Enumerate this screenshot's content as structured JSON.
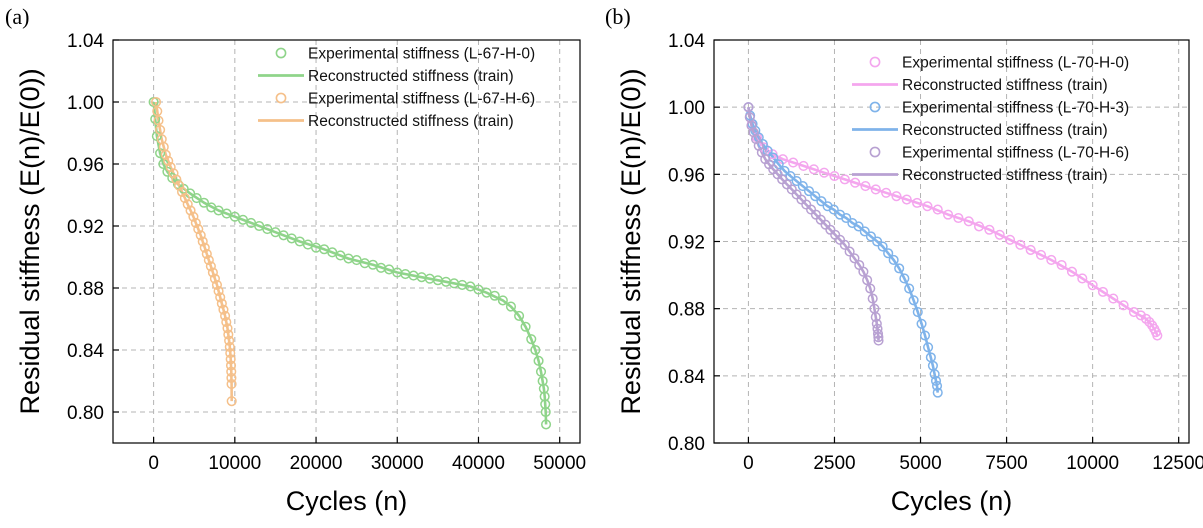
{
  "chart_data": [
    {
      "type": "scatter",
      "panel_label": "(a)",
      "xlabel": "Cycles (n)",
      "ylabel": "Residual stiffness (E(n)/E(0))",
      "xlim": [
        -5000,
        52500
      ],
      "ylim": [
        0.78,
        1.04
      ],
      "xticks": [
        0,
        10000,
        20000,
        30000,
        40000,
        50000
      ],
      "yticks": [
        0.8,
        0.84,
        0.88,
        0.92,
        0.96,
        1.0,
        1.04
      ],
      "ytick_format": 2,
      "grid": true,
      "legend_position": "top-right",
      "series": [
        {
          "name": "Experimental stiffness (L-67-H-0)",
          "kind": "marker",
          "color": "#8fd48a",
          "x": [
            0,
            200,
            400,
            800,
            1200,
            1700,
            2300,
            3000,
            3700,
            4500,
            5300,
            6200,
            7100,
            8000,
            9000,
            10000,
            11000,
            12000,
            13000,
            14000,
            15000,
            16000,
            17000,
            18000,
            19000,
            20000,
            21000,
            22000,
            23000,
            24000,
            25000,
            26000,
            27000,
            28000,
            29000,
            30000,
            31000,
            32000,
            33000,
            34000,
            35000,
            36000,
            37000,
            38000,
            39000,
            40000,
            41000,
            42000,
            43000,
            44000,
            45000,
            45800,
            46500,
            47000,
            47400,
            47700,
            47900,
            48050,
            48150,
            48220,
            48280,
            48320
          ],
          "y": [
            1.0,
            0.989,
            0.978,
            0.967,
            0.96,
            0.955,
            0.951,
            0.947,
            0.944,
            0.941,
            0.938,
            0.935,
            0.932,
            0.93,
            0.928,
            0.926,
            0.924,
            0.922,
            0.92,
            0.918,
            0.916,
            0.914,
            0.912,
            0.91,
            0.908,
            0.906,
            0.905,
            0.903,
            0.901,
            0.899,
            0.898,
            0.896,
            0.895,
            0.893,
            0.892,
            0.89,
            0.889,
            0.888,
            0.887,
            0.886,
            0.885,
            0.884,
            0.883,
            0.882,
            0.881,
            0.879,
            0.877,
            0.875,
            0.872,
            0.868,
            0.862,
            0.855,
            0.847,
            0.84,
            0.833,
            0.826,
            0.82,
            0.815,
            0.81,
            0.805,
            0.8,
            0.792
          ]
        },
        {
          "name": "Reconstructed stiffness (train)",
          "kind": "line",
          "color": "#8fd48a",
          "x": [
            0,
            200,
            400,
            800,
            1200,
            1700,
            2300,
            3000,
            4500,
            6200,
            8000,
            10000,
            12000,
            15000,
            18000,
            21000,
            24000,
            27000,
            30000,
            33000,
            36000,
            39000,
            41000,
            43000,
            44000,
            45000,
            45800,
            46500,
            47000,
            47400,
            47700,
            47900,
            48050,
            48150,
            48220,
            48280,
            48320
          ],
          "y": [
            1.0,
            0.989,
            0.978,
            0.967,
            0.96,
            0.955,
            0.951,
            0.947,
            0.941,
            0.935,
            0.93,
            0.926,
            0.922,
            0.916,
            0.91,
            0.905,
            0.899,
            0.895,
            0.89,
            0.887,
            0.884,
            0.881,
            0.877,
            0.872,
            0.868,
            0.862,
            0.855,
            0.847,
            0.84,
            0.833,
            0.826,
            0.82,
            0.815,
            0.81,
            0.805,
            0.8,
            0.792
          ]
        },
        {
          "name": "Experimental stiffness (L-67-H-6)",
          "kind": "marker",
          "color": "#f5c08a",
          "x": [
            300,
            450,
            600,
            800,
            1000,
            1250,
            1500,
            1800,
            2100,
            2450,
            2800,
            3150,
            3500,
            3850,
            4200,
            4550,
            4900,
            5200,
            5500,
            5800,
            6050,
            6300,
            6550,
            6800,
            7050,
            7300,
            7550,
            7800,
            8000,
            8200,
            8400,
            8600,
            8800,
            8950,
            9100,
            9200,
            9300,
            9380,
            9440,
            9490,
            9530,
            9560,
            9580,
            9600,
            9615
          ],
          "y": [
            1.0,
            0.994,
            0.988,
            0.982,
            0.976,
            0.971,
            0.966,
            0.962,
            0.958,
            0.954,
            0.95,
            0.946,
            0.942,
            0.938,
            0.934,
            0.93,
            0.926,
            0.922,
            0.918,
            0.914,
            0.91,
            0.906,
            0.902,
            0.898,
            0.894,
            0.89,
            0.886,
            0.882,
            0.878,
            0.874,
            0.87,
            0.866,
            0.862,
            0.858,
            0.854,
            0.85,
            0.846,
            0.842,
            0.838,
            0.834,
            0.83,
            0.826,
            0.822,
            0.818,
            0.807
          ]
        },
        {
          "name": "Reconstructed stiffness (train)",
          "kind": "line",
          "color": "#f5c08a",
          "x": [
            300,
            450,
            600,
            800,
            1000,
            1250,
            1500,
            1800,
            2100,
            2450,
            2800,
            3150,
            3500,
            3850,
            4200,
            4550,
            4900,
            5200,
            5500,
            5800,
            6050,
            6300,
            6550,
            6800,
            7050,
            7300,
            7550,
            7800,
            8000,
            8200,
            8400,
            8600,
            8800,
            8950,
            9100,
            9200,
            9300,
            9380,
            9440,
            9490,
            9530,
            9560,
            9580,
            9600,
            9615
          ],
          "y": [
            1.0,
            0.994,
            0.988,
            0.982,
            0.976,
            0.971,
            0.966,
            0.962,
            0.958,
            0.954,
            0.95,
            0.946,
            0.942,
            0.938,
            0.934,
            0.93,
            0.926,
            0.922,
            0.918,
            0.914,
            0.91,
            0.906,
            0.902,
            0.898,
            0.894,
            0.89,
            0.886,
            0.882,
            0.878,
            0.874,
            0.87,
            0.866,
            0.862,
            0.858,
            0.854,
            0.85,
            0.846,
            0.842,
            0.838,
            0.834,
            0.83,
            0.826,
            0.822,
            0.818,
            0.807
          ]
        }
      ]
    },
    {
      "type": "scatter",
      "panel_label": "(b)",
      "xlabel": "Cycles (n)",
      "ylabel": "Residual stiffness (E(n)/E(0))",
      "xlim": [
        -1000,
        12800
      ],
      "ylim": [
        0.8,
        1.04
      ],
      "xticks": [
        0,
        2500,
        5000,
        7500,
        10000,
        12500
      ],
      "yticks": [
        0.8,
        0.84,
        0.88,
        0.92,
        0.96,
        1.0,
        1.04
      ],
      "ytick_format": 2,
      "grid": true,
      "legend_position": "top-right",
      "series": [
        {
          "name": "Experimental stiffness (L-70-H-0)",
          "kind": "marker",
          "color": "#f4a6ee",
          "x": [
            0,
            100,
            250,
            450,
            700,
            1000,
            1300,
            1600,
            1900,
            2200,
            2500,
            2800,
            3100,
            3400,
            3700,
            4000,
            4300,
            4600,
            4900,
            5200,
            5500,
            5800,
            6100,
            6400,
            6700,
            7000,
            7300,
            7600,
            7900,
            8200,
            8500,
            8800,
            9100,
            9400,
            9700,
            10000,
            10300,
            10600,
            10900,
            11200,
            11400,
            11550,
            11650,
            11730,
            11790,
            11840,
            11880
          ],
          "y": [
            1.0,
            0.99,
            0.982,
            0.976,
            0.972,
            0.969,
            0.967,
            0.965,
            0.963,
            0.961,
            0.959,
            0.957,
            0.955,
            0.953,
            0.951,
            0.949,
            0.947,
            0.945,
            0.943,
            0.941,
            0.939,
            0.936,
            0.934,
            0.932,
            0.929,
            0.927,
            0.924,
            0.921,
            0.918,
            0.915,
            0.912,
            0.909,
            0.906,
            0.902,
            0.898,
            0.894,
            0.89,
            0.886,
            0.882,
            0.878,
            0.876,
            0.874,
            0.872,
            0.87,
            0.868,
            0.866,
            0.864
          ]
        },
        {
          "name": "Reconstructed stiffness (train)",
          "kind": "line",
          "color": "#f4a6ee",
          "x": [
            0,
            100,
            250,
            450,
            700,
            1000,
            1600,
            2200,
            2800,
            3400,
            4000,
            4600,
            5200,
            5800,
            6400,
            7000,
            7600,
            8200,
            8800,
            9400,
            10000,
            10600,
            11200,
            11550,
            11730,
            11840,
            11880
          ],
          "y": [
            1.0,
            0.99,
            0.982,
            0.976,
            0.972,
            0.969,
            0.965,
            0.961,
            0.957,
            0.953,
            0.949,
            0.945,
            0.941,
            0.936,
            0.932,
            0.927,
            0.921,
            0.915,
            0.909,
            0.902,
            0.894,
            0.886,
            0.878,
            0.874,
            0.87,
            0.866,
            0.864
          ]
        },
        {
          "name": "Experimental stiffness (L-70-H-3)",
          "kind": "marker",
          "color": "#7fb3ea",
          "x": [
            0,
            50,
            120,
            200,
            300,
            420,
            560,
            720,
            880,
            1050,
            1220,
            1400,
            1580,
            1760,
            1940,
            2120,
            2300,
            2480,
            2660,
            2840,
            3020,
            3200,
            3380,
            3560,
            3740,
            3900,
            4060,
            4220,
            4380,
            4530,
            4670,
            4800,
            4920,
            5030,
            5130,
            5220,
            5300,
            5360,
            5410,
            5450,
            5480,
            5500
          ],
          "y": [
            1.0,
            0.995,
            0.99,
            0.986,
            0.982,
            0.978,
            0.974,
            0.97,
            0.966,
            0.962,
            0.959,
            0.956,
            0.953,
            0.95,
            0.947,
            0.944,
            0.941,
            0.939,
            0.936,
            0.934,
            0.931,
            0.929,
            0.926,
            0.923,
            0.92,
            0.917,
            0.913,
            0.909,
            0.904,
            0.898,
            0.892,
            0.885,
            0.878,
            0.871,
            0.864,
            0.857,
            0.851,
            0.846,
            0.841,
            0.837,
            0.834,
            0.83
          ]
        },
        {
          "name": "Reconstructed stiffness (train)",
          "kind": "line",
          "color": "#7fb3ea",
          "x": [
            0,
            50,
            120,
            200,
            300,
            420,
            560,
            720,
            880,
            1050,
            1220,
            1400,
            1580,
            1760,
            1940,
            2120,
            2300,
            2480,
            2660,
            2840,
            3020,
            3200,
            3380,
            3560,
            3740,
            3900,
            4060,
            4220,
            4380,
            4530,
            4670,
            4800,
            4920,
            5030,
            5130,
            5220,
            5300,
            5360,
            5410,
            5450,
            5480,
            5500
          ],
          "y": [
            1.0,
            0.995,
            0.99,
            0.986,
            0.982,
            0.978,
            0.974,
            0.97,
            0.966,
            0.962,
            0.959,
            0.956,
            0.953,
            0.95,
            0.947,
            0.944,
            0.941,
            0.939,
            0.936,
            0.934,
            0.931,
            0.929,
            0.926,
            0.923,
            0.92,
            0.917,
            0.913,
            0.909,
            0.904,
            0.898,
            0.892,
            0.885,
            0.878,
            0.871,
            0.864,
            0.857,
            0.851,
            0.846,
            0.841,
            0.837,
            0.834,
            0.83
          ]
        },
        {
          "name": "Experimental stiffness (L-70-H-6)",
          "kind": "marker",
          "color": "#b8a1d2",
          "x": [
            0,
            40,
            90,
            150,
            220,
            300,
            390,
            490,
            600,
            720,
            850,
            980,
            1120,
            1260,
            1400,
            1540,
            1680,
            1820,
            1960,
            2100,
            2240,
            2380,
            2520,
            2660,
            2800,
            2940,
            3080,
            3220,
            3340,
            3450,
            3540,
            3610,
            3660,
            3700,
            3730,
            3750,
            3765,
            3775,
            3780
          ],
          "y": [
            1.0,
            0.994,
            0.989,
            0.985,
            0.981,
            0.977,
            0.973,
            0.969,
            0.966,
            0.963,
            0.96,
            0.957,
            0.954,
            0.951,
            0.948,
            0.945,
            0.942,
            0.939,
            0.936,
            0.933,
            0.93,
            0.927,
            0.924,
            0.921,
            0.918,
            0.914,
            0.91,
            0.906,
            0.902,
            0.897,
            0.892,
            0.886,
            0.88,
            0.875,
            0.871,
            0.868,
            0.865,
            0.863,
            0.861
          ]
        },
        {
          "name": "Reconstructed stiffness (train)",
          "kind": "line",
          "color": "#b8a1d2",
          "x": [
            0,
            40,
            90,
            150,
            220,
            300,
            390,
            490,
            600,
            720,
            850,
            980,
            1120,
            1260,
            1400,
            1540,
            1680,
            1820,
            1960,
            2100,
            2240,
            2380,
            2520,
            2660,
            2800,
            2940,
            3080,
            3220,
            3340,
            3450,
            3540,
            3610,
            3660,
            3700,
            3730,
            3750,
            3765,
            3775,
            3780
          ],
          "y": [
            1.0,
            0.994,
            0.989,
            0.985,
            0.981,
            0.977,
            0.973,
            0.969,
            0.966,
            0.963,
            0.96,
            0.957,
            0.954,
            0.951,
            0.948,
            0.945,
            0.942,
            0.939,
            0.936,
            0.933,
            0.93,
            0.927,
            0.924,
            0.921,
            0.918,
            0.914,
            0.91,
            0.906,
            0.902,
            0.897,
            0.892,
            0.886,
            0.88,
            0.875,
            0.871,
            0.868,
            0.865,
            0.863,
            0.861
          ]
        }
      ]
    }
  ]
}
